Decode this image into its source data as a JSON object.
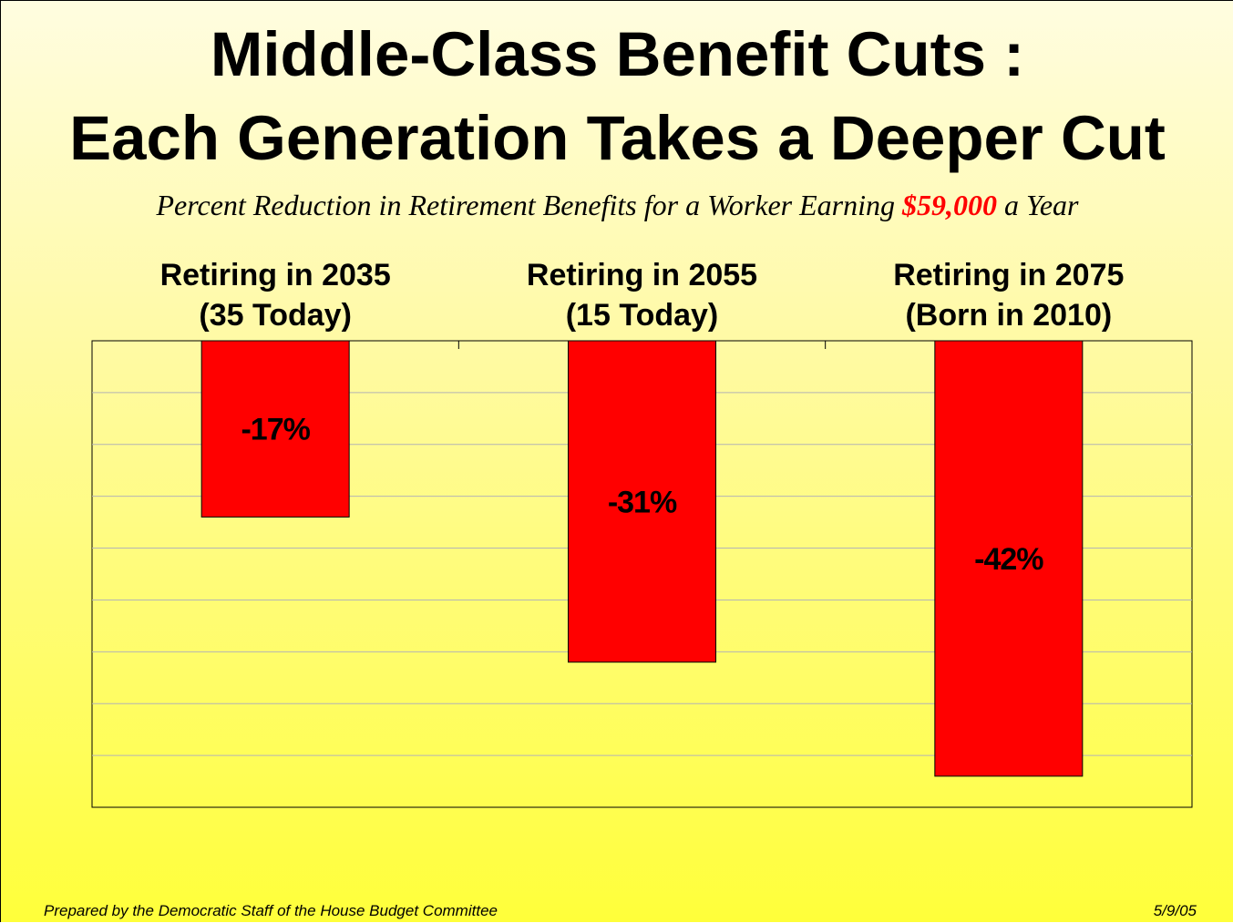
{
  "slide": {
    "title_line1": "Middle-Class Benefit Cuts :",
    "title_line2": "Each Generation Takes a Deeper Cut",
    "subtitle_before": "Percent Reduction in Retirement Benefits for a Worker Earning ",
    "subtitle_highlight": "$59,000",
    "subtitle_after": " a Year",
    "footer_left": "Prepared by the Democratic Staff of the House Budget Committee",
    "footer_right": "5/9/05"
  },
  "colors": {
    "bar": "#ff0000",
    "highlight": "#ff0000",
    "gridline": "#b4b4b4",
    "background_top": "#fffde0",
    "background_bottom": "#ffff3a"
  },
  "chart_data": {
    "type": "bar",
    "title": "",
    "xlabel": "",
    "ylabel": "",
    "categories": [
      [
        "Retiring in 2035",
        "(35 Today)"
      ],
      [
        "Retiring in 2055",
        "(15 Today)"
      ],
      [
        "Retiring in 2075",
        "(Born in 2010)"
      ]
    ],
    "values": [
      -17,
      -31,
      -42
    ],
    "data_labels": [
      "-17%",
      "-31%",
      "-42%"
    ],
    "ylim": [
      -45,
      0
    ],
    "y_gridline_step": 5,
    "y_tick_labels_shown": false,
    "x_axis_position": "top",
    "grid": true,
    "legend": "none"
  }
}
